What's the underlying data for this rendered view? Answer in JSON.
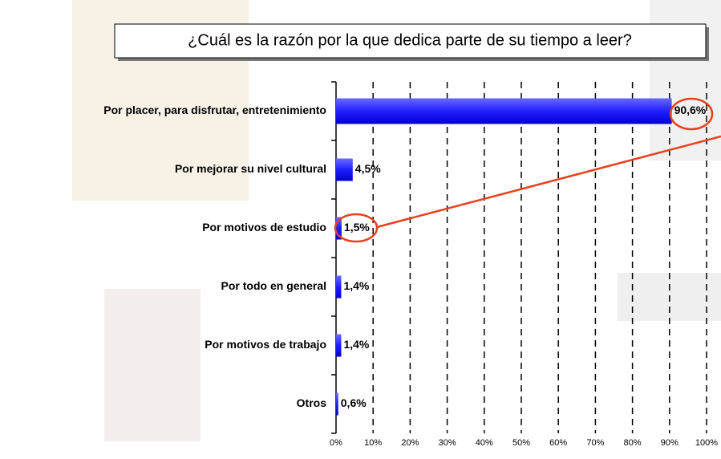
{
  "chart_data": {
    "type": "bar",
    "orientation": "horizontal",
    "title": "¿Cuál es la razón por la que dedica parte de su tiempo a leer?",
    "categories": [
      "Por placer, para disfrutar, entretenimiento",
      "Por mejorar su nivel cultural",
      "Por motivos de estudio",
      "Por todo en general",
      "Por motivos de trabajo",
      "Otros"
    ],
    "values": [
      90.6,
      4.5,
      1.5,
      1.4,
      1.4,
      0.6
    ],
    "value_labels": [
      "90,6%",
      "4,5%",
      "1,5%",
      "1,4%",
      "1,4%",
      "0,6%"
    ],
    "color": "#1f1fff",
    "xlim": [
      0,
      100
    ],
    "xticks": [
      {
        "value": 0,
        "label": "0%"
      },
      {
        "value": 10,
        "label": "10%"
      },
      {
        "value": 20,
        "label": "20%"
      },
      {
        "value": 30,
        "label": "30%"
      },
      {
        "value": 40,
        "label": "40%"
      },
      {
        "value": 50,
        "label": "50%"
      },
      {
        "value": 60,
        "label": "60%"
      },
      {
        "value": 70,
        "label": "70%"
      },
      {
        "value": 80,
        "label": "80%"
      },
      {
        "value": 90,
        "label": "90%"
      },
      {
        "value": 100,
        "label": "100%"
      }
    ],
    "grid": true
  }
}
